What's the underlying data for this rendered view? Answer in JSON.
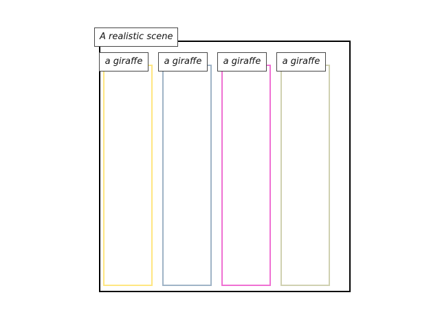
{
  "scene": {
    "label": "A realistic scene",
    "border_color": "#000000"
  },
  "objects": [
    {
      "label": "a giraffe",
      "color": "#ffe680"
    },
    {
      "label": "a giraffe",
      "color": "#9fb3c6"
    },
    {
      "label": "a giraffe",
      "color": "#ef6fd2"
    },
    {
      "label": "a giraffe",
      "color": "#cfd0b0"
    }
  ]
}
